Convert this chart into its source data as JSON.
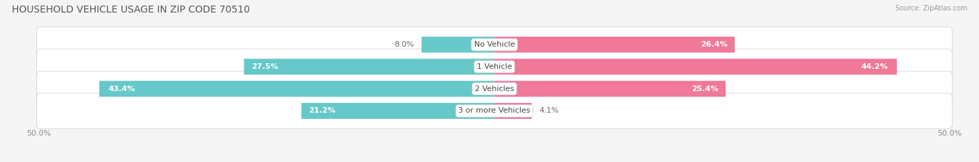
{
  "title": "HOUSEHOLD VEHICLE USAGE IN ZIP CODE 70510",
  "source": "Source: ZipAtlas.com",
  "categories": [
    "No Vehicle",
    "1 Vehicle",
    "2 Vehicles",
    "3 or more Vehicles"
  ],
  "owner_values": [
    8.0,
    27.5,
    43.4,
    21.2
  ],
  "renter_values": [
    26.4,
    44.2,
    25.4,
    4.1
  ],
  "owner_color": "#66c8c8",
  "renter_color": "#f07898",
  "row_bg_color": "#e8e8e8",
  "fig_bg_color": "#f5f5f5",
  "title_fontsize": 10,
  "label_fontsize": 8,
  "pct_fontsize": 8,
  "tick_fontsize": 8,
  "xlim": [
    -50,
    50
  ],
  "bar_height": 0.72
}
